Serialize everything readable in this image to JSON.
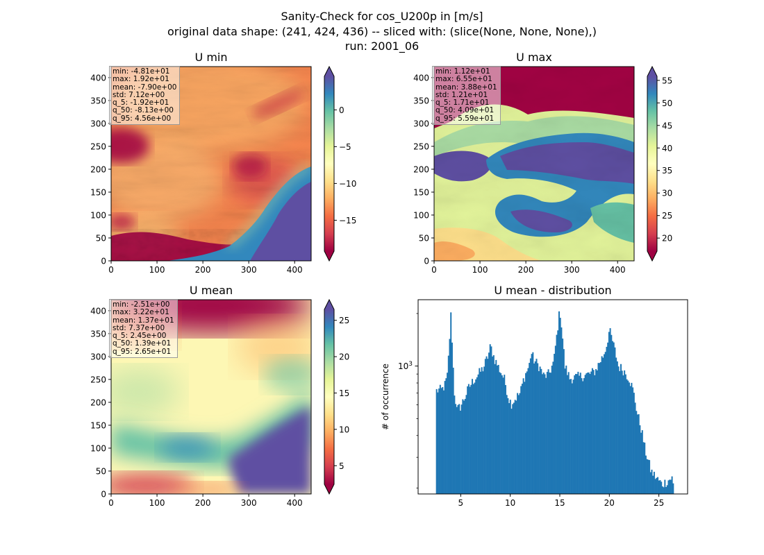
{
  "figure": {
    "suptitle_lines": [
      "Sanity-Check for cos_U200p in [m/s]",
      "original data shape: (241, 424, 436) -- sliced with: (slice(None, None, None),)",
      "run: 2001_06"
    ]
  },
  "colormap": "Spectral",
  "chart_data": [
    {
      "type": "heatmap",
      "title": "U min",
      "xlim": [
        0,
        436
      ],
      "ylim": [
        0,
        424
      ],
      "xticks": [
        0,
        100,
        200,
        300,
        400
      ],
      "yticks": [
        0,
        50,
        100,
        150,
        200,
        250,
        300,
        350,
        400
      ],
      "color_range": [
        -19.2,
        4.56
      ],
      "colorbar_ticks": [
        -15,
        -10,
        -5,
        0
      ],
      "colorbar_extend": "both",
      "stats": [
        "min: -4.81e+01",
        "max: 1.92e+01",
        "mean: -7.90e+00",
        "std: 7.12e+00",
        "q_5: -1.92e+01",
        "q_50: -8.13e+00",
        "q_95: 4.56e+00"
      ]
    },
    {
      "type": "heatmap",
      "title": "U max",
      "xlim": [
        0,
        436
      ],
      "ylim": [
        0,
        424
      ],
      "xticks": [
        0,
        100,
        200,
        300,
        400
      ],
      "yticks": [
        0,
        50,
        100,
        150,
        200,
        250,
        300,
        350,
        400
      ],
      "color_range": [
        17.1,
        55.9
      ],
      "colorbar_ticks": [
        20,
        25,
        30,
        35,
        40,
        45,
        50,
        55
      ],
      "colorbar_extend": "both",
      "stats": [
        "min: 1.12e+01",
        "max: 6.55e+01",
        "mean: 3.88e+01",
        "std: 1.21e+01",
        "q_5: 1.71e+01",
        "q_50: 4.09e+01",
        "q_95: 5.59e+01"
      ]
    },
    {
      "type": "heatmap",
      "title": "U mean",
      "xlim": [
        0,
        436
      ],
      "ylim": [
        0,
        424
      ],
      "xticks": [
        0,
        100,
        200,
        300,
        400
      ],
      "yticks": [
        0,
        50,
        100,
        150,
        200,
        250,
        300,
        350,
        400
      ],
      "color_range": [
        2.45,
        26.5
      ],
      "colorbar_ticks": [
        5,
        10,
        15,
        20,
        25
      ],
      "colorbar_extend": "both",
      "stats": [
        "min: -2.51e+00",
        "max: 3.22e+01",
        "mean: 1.37e+01",
        "std: 7.37e+00",
        "q_5: 2.45e+00",
        "q_50: 1.39e+01",
        "q_95: 2.65e+01"
      ]
    },
    {
      "type": "bar",
      "title": "U mean - distribution",
      "xlabel": "",
      "ylabel": "# of occurrence",
      "yscale": "log",
      "xlim": [
        0.7,
        27.9
      ],
      "ylim": [
        185,
        2400
      ],
      "xticks": [
        5,
        10,
        15,
        20,
        25
      ],
      "yticks_major": [
        1000
      ],
      "ytick_label": "10",
      "ytick_exp": "3",
      "yticks_minor": [
        200,
        300,
        400,
        500,
        600,
        700,
        800,
        900,
        2000
      ],
      "bar_color": "#1f77b4",
      "x": [
        2.5,
        26.5
      ],
      "control_points": [
        [
          2.5,
          720
        ],
        [
          2.8,
          730
        ],
        [
          3.1,
          730
        ],
        [
          3.4,
          780
        ],
        [
          3.7,
          900
        ],
        [
          3.8,
          1250
        ],
        [
          3.95,
          1650
        ],
        [
          4.0,
          1950
        ],
        [
          4.1,
          1500
        ],
        [
          4.3,
          740
        ],
        [
          4.6,
          560
        ],
        [
          5.0,
          590
        ],
        [
          5.4,
          660
        ],
        [
          5.8,
          750
        ],
        [
          6.3,
          830
        ],
        [
          6.8,
          900
        ],
        [
          7.3,
          980
        ],
        [
          7.8,
          1160
        ],
        [
          8.0,
          1300
        ],
        [
          8.4,
          1100
        ],
        [
          8.9,
          960
        ],
        [
          9.4,
          840
        ],
        [
          9.8,
          660
        ],
        [
          10.1,
          610
        ],
        [
          10.6,
          660
        ],
        [
          11.0,
          700
        ],
        [
          11.4,
          860
        ],
        [
          11.9,
          1000
        ],
        [
          12.1,
          1200
        ],
        [
          12.4,
          1080
        ],
        [
          12.9,
          1000
        ],
        [
          13.4,
          870
        ],
        [
          13.9,
          900
        ],
        [
          14.4,
          1060
        ],
        [
          14.7,
          1500
        ],
        [
          14.9,
          1900
        ],
        [
          15.0,
          2100
        ],
        [
          15.3,
          1400
        ],
        [
          15.5,
          1000
        ],
        [
          16.0,
          850
        ],
        [
          17.0,
          870
        ],
        [
          18.0,
          900
        ],
        [
          18.6,
          940
        ],
        [
          19.0,
          1050
        ],
        [
          19.4,
          1150
        ],
        [
          19.7,
          1300
        ],
        [
          20.0,
          1600
        ],
        [
          20.3,
          1400
        ],
        [
          20.9,
          1000
        ],
        [
          21.4,
          950
        ],
        [
          22.0,
          850
        ],
        [
          22.4,
          720
        ],
        [
          22.8,
          540
        ],
        [
          23.2,
          440
        ],
        [
          23.6,
          330
        ],
        [
          24.2,
          250
        ],
        [
          24.7,
          230
        ],
        [
          25.3,
          210
        ],
        [
          25.9,
          220
        ],
        [
          26.3,
          230
        ],
        [
          26.5,
          200
        ]
      ]
    }
  ]
}
